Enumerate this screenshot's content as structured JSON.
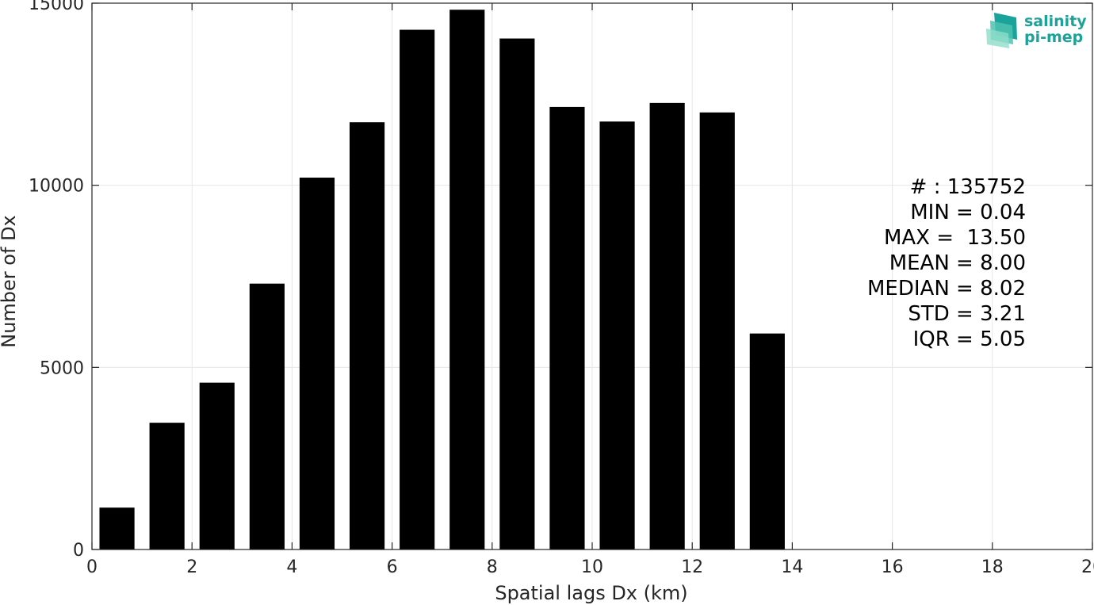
{
  "chart_data": {
    "type": "bar",
    "xlabel": "Spatial lags Dx (km)",
    "ylabel": "Number of Dx",
    "xlim": [
      0,
      20
    ],
    "ylim": [
      0,
      15000
    ],
    "x_ticks": [
      0,
      2,
      4,
      6,
      8,
      10,
      12,
      14,
      16,
      18,
      20
    ],
    "y_ticks": [
      0,
      5000,
      10000,
      15000
    ],
    "grid": true,
    "bar_centers": [
      0.5,
      1.5,
      2.5,
      3.5,
      4.5,
      5.5,
      6.5,
      7.5,
      8.5,
      9.5,
      10.5,
      11.5,
      12.5,
      13.5
    ],
    "bar_width": 0.7,
    "values": [
      1150,
      3480,
      4580,
      7300,
      10210,
      11730,
      14270,
      14820,
      14030,
      12150,
      11750,
      12260,
      12000,
      5930
    ],
    "bar_color": "#000000"
  },
  "stats": {
    "lines": [
      "# : 135752",
      "MIN = 0.04",
      "MAX =  13.50",
      "MEAN = 8.00",
      "MEDIAN = 8.02",
      "STD = 3.21",
      "IQR = 5.05"
    ]
  },
  "logo": {
    "line1": "salinity",
    "line2": "pi-mep",
    "color": "#1aa39a"
  }
}
